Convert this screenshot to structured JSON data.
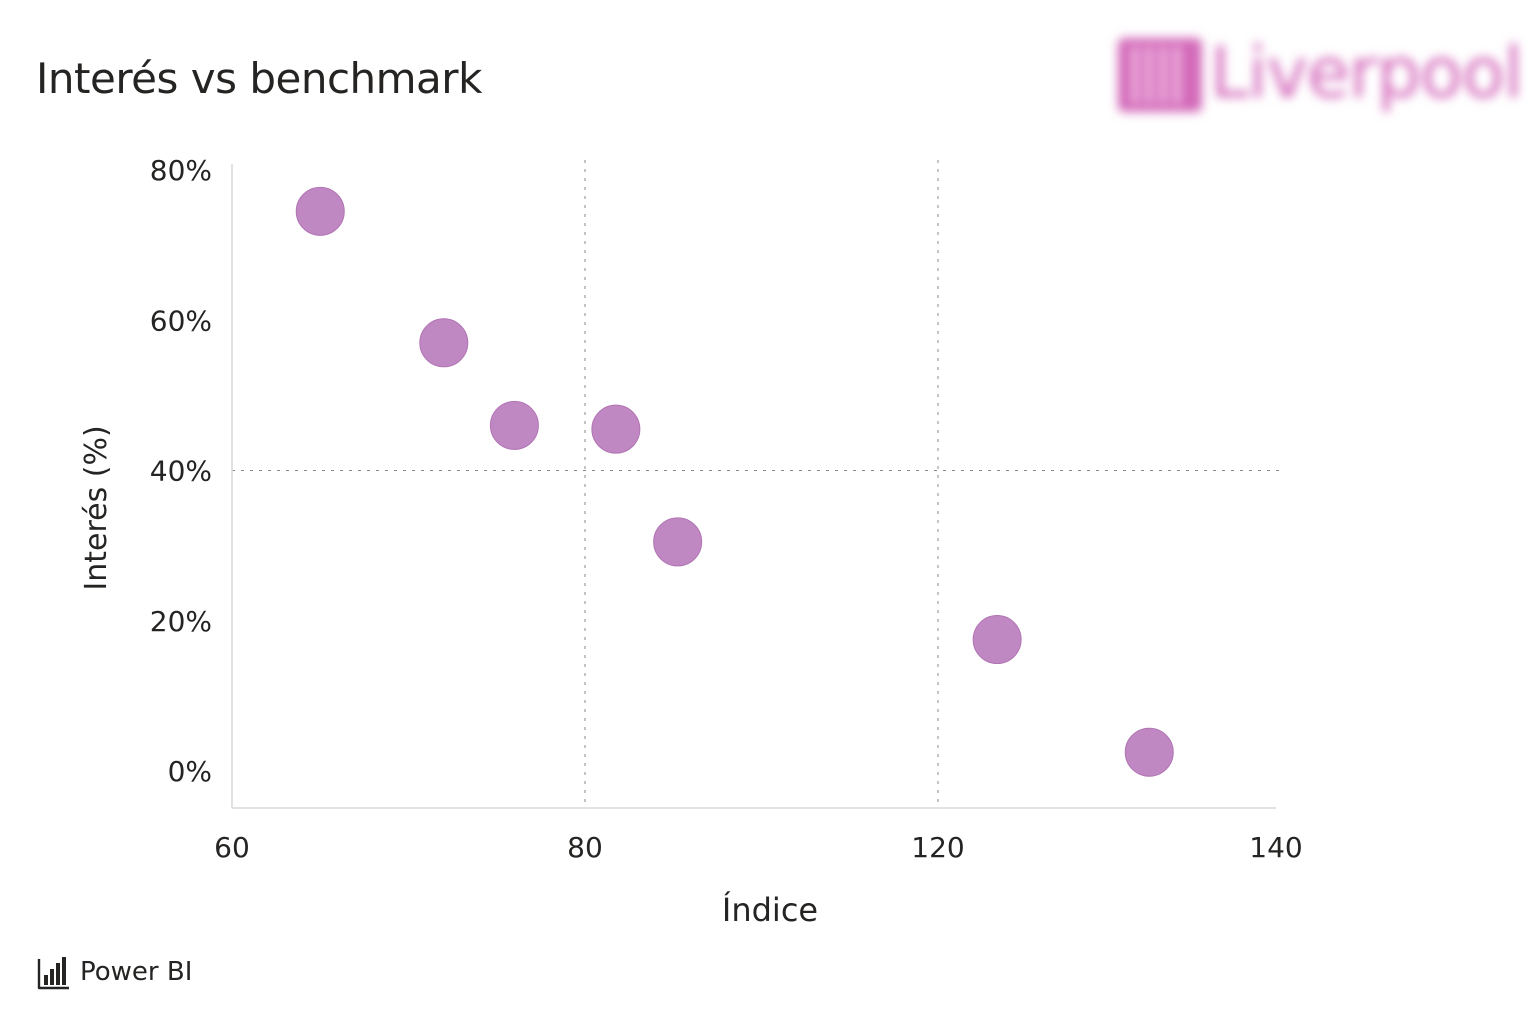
{
  "header": {
    "title": "Interés vs benchmark"
  },
  "brand": {
    "logo_text": "Liverpool",
    "logo_color": "#d36ab9"
  },
  "footer": {
    "label": "Power BI",
    "icon": "power-bi-icon"
  },
  "colors": {
    "marker": "#c088c2",
    "marker_stroke": "#b174b4",
    "axis": "#d9d9d9",
    "reference_line": "#8a8a8a",
    "text": "#252423"
  },
  "chart_data": {
    "type": "scatter",
    "title": "Interés vs benchmark",
    "xlabel": "Índice",
    "ylabel": "Interés (%)",
    "x_ticks": [
      {
        "value": 60,
        "label": "60"
      },
      {
        "value": 80,
        "label": "80"
      },
      {
        "value": 120,
        "label": "120"
      },
      {
        "value": 140,
        "label": "140"
      }
    ],
    "y_ticks": [
      {
        "value": 0,
        "label": "0%"
      },
      {
        "value": 20,
        "label": "20%"
      },
      {
        "value": 40,
        "label": "40%"
      },
      {
        "value": 60,
        "label": "60%"
      },
      {
        "value": 80,
        "label": "80%"
      }
    ],
    "reference_lines": {
      "x": [
        80,
        120
      ],
      "y": [
        40
      ]
    },
    "legend": "none",
    "grid": false,
    "points": [
      {
        "x": 65,
        "y": 74.5
      },
      {
        "x": 72,
        "y": 57
      },
      {
        "x": 76,
        "y": 46
      },
      {
        "x": 83.5,
        "y": 45.5
      },
      {
        "x": 90.5,
        "y": 30.5
      },
      {
        "x": 123.5,
        "y": 17.5
      },
      {
        "x": 132.5,
        "y": 2.5
      }
    ]
  }
}
